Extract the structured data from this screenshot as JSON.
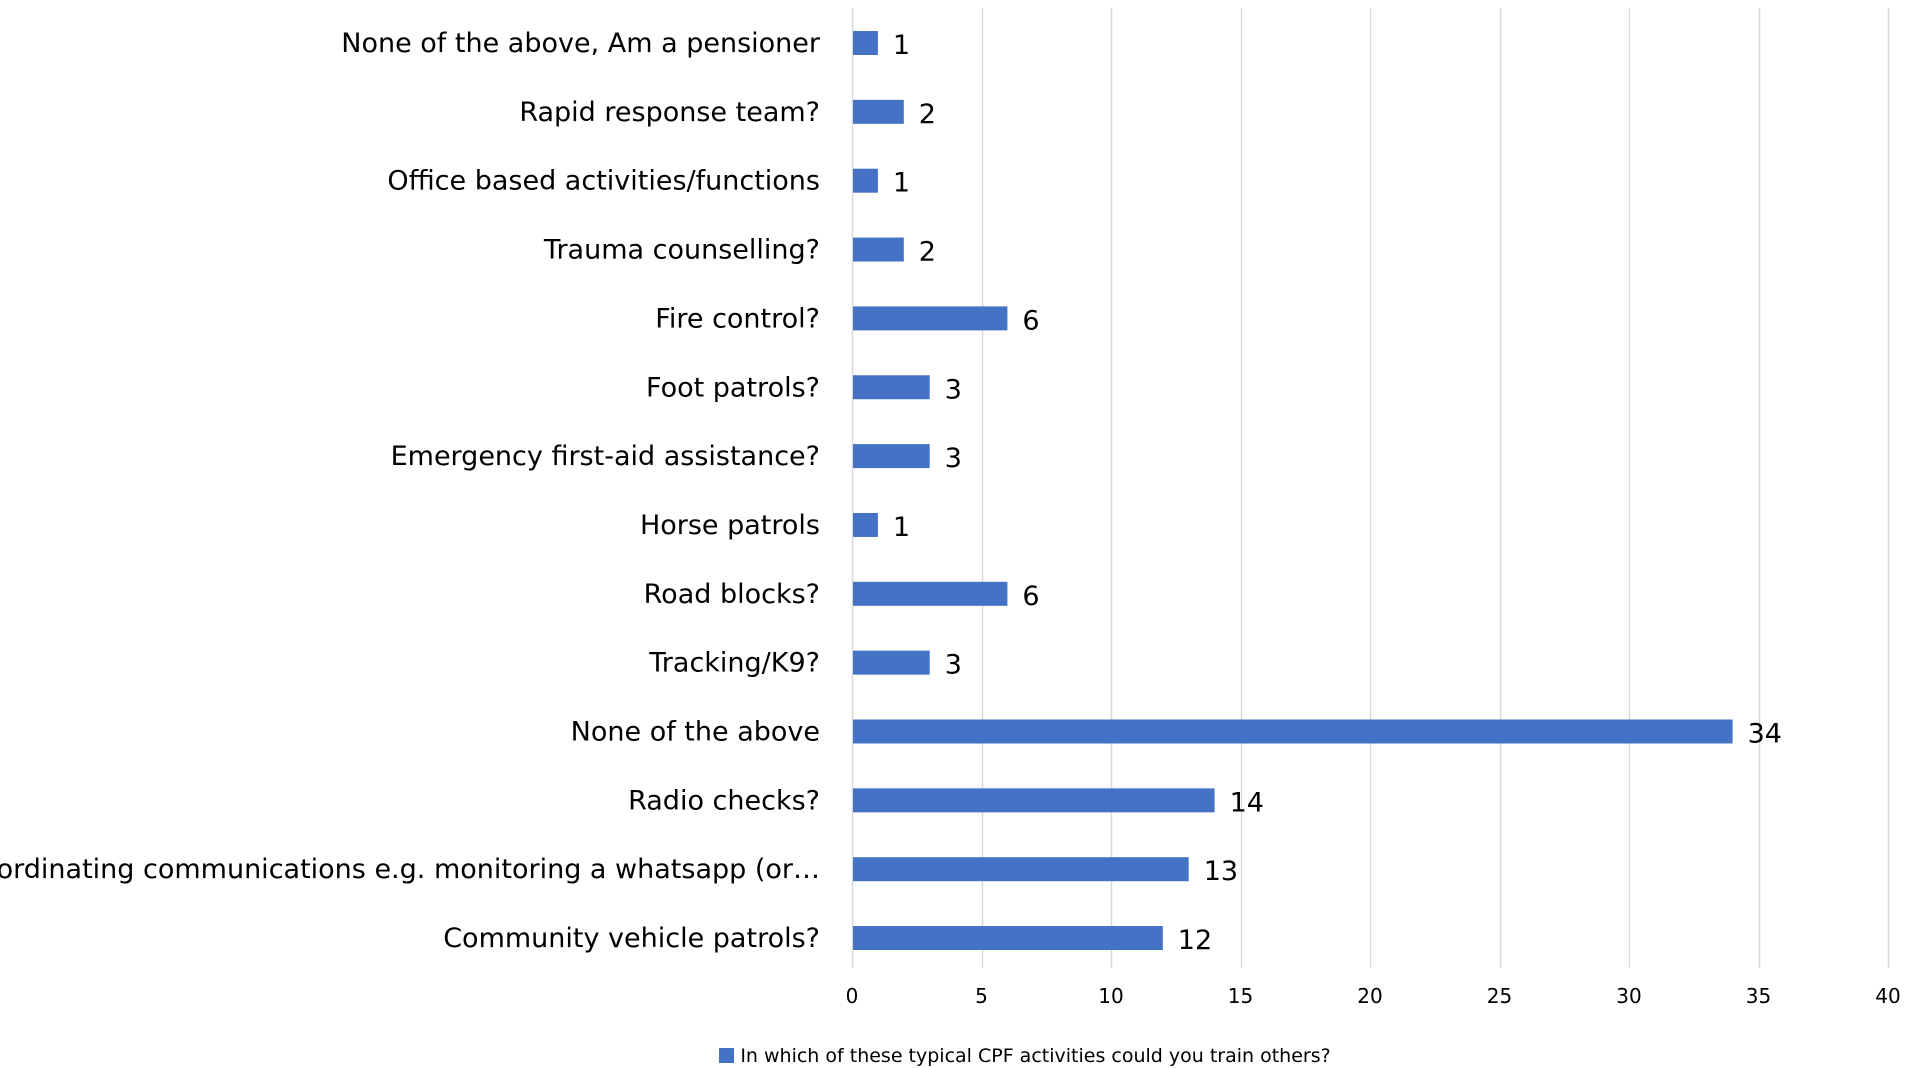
{
  "colors": {
    "bar": "#4472c4",
    "grid": "#d9d9d9",
    "text": "#000000"
  },
  "chart_data": {
    "type": "bar",
    "orientation": "horizontal",
    "categories": [
      "None of the above, Am a pensioner",
      "Rapid response team?",
      "Office based activities/functions",
      "Trauma counselling?",
      "Fire control?",
      "Foot patrols?",
      "Emergency first-aid assistance?",
      "Horse patrols",
      "Road blocks?",
      "Tracking/K9?",
      "None of the above",
      "Radio checks?",
      "Co-ordinating communications e.g. monitoring a whatsapp (or…",
      "Community vehicle patrols?"
    ],
    "series": [
      {
        "name": "In which of these typical CPF activities could you train others?",
        "values": [
          1,
          2,
          1,
          2,
          6,
          3,
          3,
          1,
          6,
          3,
          34,
          14,
          13,
          12
        ]
      }
    ],
    "xlim": [
      0,
      40
    ],
    "xticks": [
      0,
      5,
      10,
      15,
      20,
      25,
      30,
      35,
      40
    ],
    "grid": "vertical",
    "data_labels": true,
    "legend_position": "bottom",
    "title": "",
    "xlabel": "",
    "ylabel": ""
  }
}
